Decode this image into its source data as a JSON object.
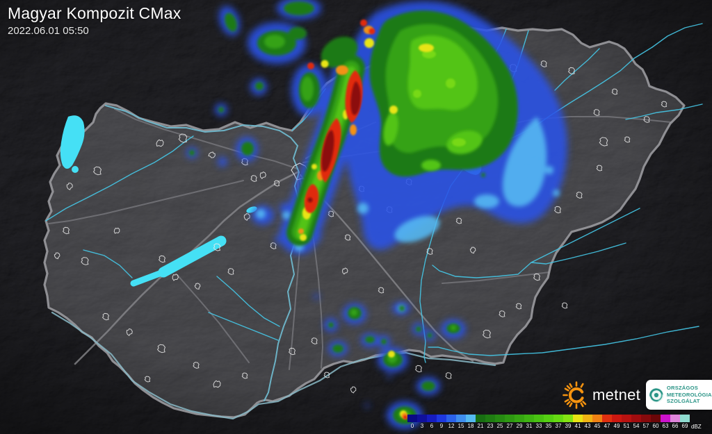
{
  "header": {
    "title": "Magyar Kompozit CMax",
    "timestamp": "2022.06.01 05:50"
  },
  "branding": {
    "metnet_name": "metnet",
    "metnet_sun_color": "#f5930f",
    "omsz_lines": [
      "ORSZÁGOS",
      "METEOROLÓGIAI",
      "SZOLGÁLAT"
    ],
    "omsz_teal": "#2a9486"
  },
  "colorbar": {
    "unit": "dBZ",
    "stops": [
      {
        "label": "0",
        "color": "#0a0a85"
      },
      {
        "label": "3",
        "color": "#10109c"
      },
      {
        "label": "6",
        "color": "#161cc0"
      },
      {
        "label": "9",
        "color": "#1e38e0"
      },
      {
        "label": "12",
        "color": "#2b62ea"
      },
      {
        "label": "15",
        "color": "#3f8eee"
      },
      {
        "label": "18",
        "color": "#55baf0"
      },
      {
        "label": "21",
        "color": "#186e12"
      },
      {
        "label": "23",
        "color": "#1f7c12"
      },
      {
        "label": "25",
        "color": "#268a12"
      },
      {
        "label": "27",
        "color": "#2e9812"
      },
      {
        "label": "29",
        "color": "#36a612"
      },
      {
        "label": "31",
        "color": "#3fb412"
      },
      {
        "label": "33",
        "color": "#49c212"
      },
      {
        "label": "35",
        "color": "#55d012"
      },
      {
        "label": "37",
        "color": "#66da12"
      },
      {
        "label": "39",
        "color": "#84e412"
      },
      {
        "label": "41",
        "color": "#e8e414"
      },
      {
        "label": "43",
        "color": "#f0b414"
      },
      {
        "label": "45",
        "color": "#f08214"
      },
      {
        "label": "47",
        "color": "#e03010"
      },
      {
        "label": "49",
        "color": "#cc1810"
      },
      {
        "label": "51",
        "color": "#b81210"
      },
      {
        "label": "54",
        "color": "#a00c0e"
      },
      {
        "label": "57",
        "color": "#860a0c"
      },
      {
        "label": "60",
        "color": "#6a0608"
      },
      {
        "label": "63",
        "color": "#cc12cc"
      },
      {
        "label": "66",
        "color": "#df85da"
      },
      {
        "label": "69",
        "color": "#8fdcd0"
      }
    ]
  },
  "map": {
    "legend_colors": {
      "lake": "#45e0f5",
      "river": "#45c8e8",
      "country_border": "#9a9a9e",
      "road": "#7b7b80",
      "town_outline": "#ececec",
      "terrain_inside": "#46464a",
      "terrain_outside": "#26262a"
    }
  }
}
